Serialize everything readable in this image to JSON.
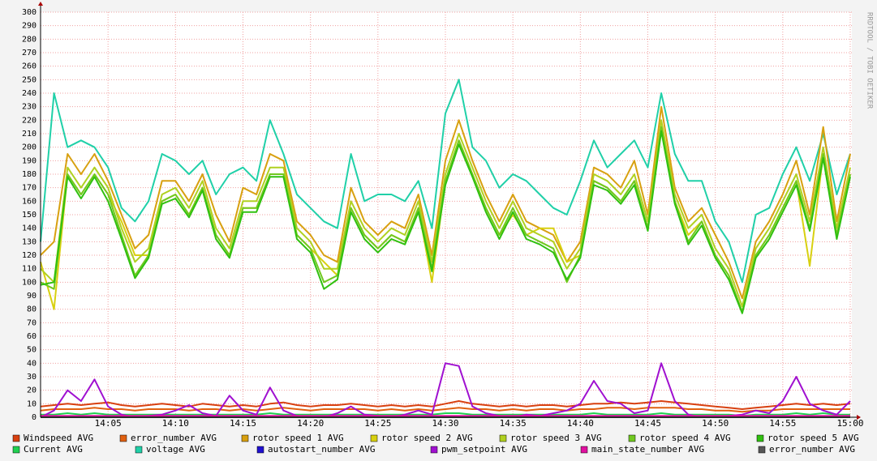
{
  "chart_data": {
    "type": "line",
    "watermark": "RRDTOOL / TOBI OETIKER",
    "x": [
      "14:00",
      "14:01",
      "14:02",
      "14:03",
      "14:04",
      "14:05",
      "14:06",
      "14:07",
      "14:08",
      "14:09",
      "14:10",
      "14:11",
      "14:12",
      "14:13",
      "14:14",
      "14:15",
      "14:16",
      "14:17",
      "14:18",
      "14:19",
      "14:20",
      "14:21",
      "14:22",
      "14:23",
      "14:24",
      "14:25",
      "14:26",
      "14:27",
      "14:28",
      "14:29",
      "14:30",
      "14:31",
      "14:32",
      "14:33",
      "14:34",
      "14:35",
      "14:36",
      "14:37",
      "14:38",
      "14:39",
      "14:40",
      "14:41",
      "14:42",
      "14:43",
      "14:44",
      "14:45",
      "14:46",
      "14:47",
      "14:48",
      "14:49",
      "14:50",
      "14:51",
      "14:52",
      "14:53",
      "14:54",
      "14:55",
      "14:56",
      "14:57",
      "14:58",
      "14:59",
      "15:00"
    ],
    "xlim": [
      "14:00",
      "15:00"
    ],
    "xticks": [
      "14:05",
      "14:10",
      "14:15",
      "14:20",
      "14:25",
      "14:30",
      "14:35",
      "14:40",
      "14:45",
      "14:50",
      "14:55",
      "15:00"
    ],
    "ylim": [
      0,
      300
    ],
    "yticks": [
      0,
      10,
      20,
      30,
      40,
      50,
      60,
      70,
      80,
      90,
      100,
      110,
      120,
      130,
      140,
      150,
      160,
      170,
      180,
      190,
      200,
      210,
      220,
      230,
      240,
      250,
      260,
      270,
      280,
      290,
      300
    ],
    "grid": true,
    "series": [
      {
        "name": "Windspeed AVG",
        "color": "#d84010",
        "values": [
          8,
          9,
          10,
          9,
          10,
          11,
          9,
          8,
          9,
          10,
          9,
          8,
          10,
          9,
          8,
          9,
          8,
          10,
          11,
          9,
          8,
          9,
          9,
          10,
          9,
          8,
          9,
          8,
          9,
          8,
          10,
          12,
          10,
          9,
          8,
          9,
          8,
          9,
          9,
          8,
          9,
          10,
          10,
          11,
          10,
          11,
          12,
          11,
          10,
          9,
          8,
          7,
          6,
          7,
          8,
          9,
          10,
          9,
          10,
          9,
          10
        ]
      },
      {
        "name": "error_number AVG",
        "color": "#e06010",
        "values": [
          5,
          6,
          6,
          6,
          7,
          6,
          6,
          5,
          6,
          6,
          6,
          5,
          6,
          6,
          5,
          6,
          5,
          6,
          7,
          6,
          5,
          6,
          6,
          6,
          6,
          5,
          6,
          5,
          6,
          5,
          6,
          7,
          6,
          6,
          5,
          6,
          5,
          6,
          6,
          5,
          6,
          6,
          7,
          7,
          6,
          7,
          7,
          7,
          6,
          6,
          5,
          5,
          4,
          5,
          5,
          6,
          6,
          6,
          6,
          6,
          6
        ]
      },
      {
        "name": "rotor speed 1 AVG",
        "color": "#d8a010",
        "values": [
          120,
          130,
          195,
          180,
          195,
          175,
          150,
          125,
          135,
          175,
          175,
          160,
          180,
          150,
          130,
          170,
          165,
          195,
          190,
          145,
          135,
          120,
          115,
          170,
          145,
          135,
          145,
          140,
          165,
          120,
          190,
          220,
          190,
          165,
          145,
          165,
          145,
          140,
          135,
          115,
          130,
          185,
          180,
          170,
          190,
          150,
          230,
          170,
          145,
          155,
          135,
          115,
          88,
          130,
          145,
          165,
          190,
          150,
          215,
          145,
          195
        ]
      },
      {
        "name": "rotor speed 2 AVG",
        "color": "#d8d010",
        "values": [
          115,
          80,
          180,
          165,
          180,
          165,
          145,
          120,
          120,
          160,
          165,
          150,
          170,
          135,
          120,
          155,
          155,
          180,
          180,
          135,
          125,
          115,
          105,
          155,
          135,
          125,
          135,
          130,
          155,
          100,
          175,
          205,
          180,
          155,
          135,
          150,
          135,
          140,
          140,
          115,
          120,
          175,
          170,
          160,
          175,
          140,
          215,
          160,
          135,
          145,
          120,
          105,
          78,
          120,
          135,
          155,
          175,
          112,
          195,
          135,
          180
        ]
      },
      {
        "name": "rotor speed 3 AVG",
        "color": "#b0d020",
        "values": [
          110,
          100,
          185,
          170,
          185,
          170,
          140,
          115,
          125,
          165,
          170,
          155,
          175,
          140,
          125,
          160,
          160,
          185,
          185,
          140,
          130,
          110,
          110,
          160,
          140,
          130,
          140,
          135,
          160,
          115,
          180,
          210,
          185,
          160,
          140,
          160,
          140,
          135,
          130,
          110,
          125,
          180,
          175,
          165,
          180,
          145,
          220,
          165,
          140,
          150,
          125,
          110,
          82,
          125,
          140,
          160,
          180,
          145,
          200,
          140,
          185
        ]
      },
      {
        "name": "rotor speed 4 AVG",
        "color": "#70c820",
        "values": [
          100,
          95,
          180,
          165,
          180,
          165,
          135,
          105,
          120,
          160,
          165,
          150,
          170,
          135,
          120,
          155,
          155,
          180,
          180,
          135,
          125,
          100,
          105,
          155,
          135,
          125,
          135,
          130,
          155,
          110,
          175,
          205,
          180,
          155,
          135,
          155,
          135,
          130,
          125,
          100,
          120,
          175,
          170,
          160,
          175,
          140,
          215,
          160,
          130,
          145,
          120,
          105,
          78,
          120,
          135,
          155,
          175,
          140,
          195,
          135,
          180
        ]
      },
      {
        "name": "rotor speed 5 AVG",
        "color": "#30c010",
        "values": [
          98,
          100,
          178,
          162,
          178,
          160,
          132,
          103,
          118,
          158,
          162,
          148,
          168,
          132,
          118,
          152,
          152,
          178,
          178,
          132,
          122,
          95,
          102,
          152,
          132,
          122,
          132,
          128,
          152,
          108,
          172,
          202,
          178,
          152,
          132,
          152,
          132,
          128,
          122,
          102,
          118,
          172,
          168,
          158,
          172,
          138,
          212,
          158,
          128,
          142,
          118,
          102,
          77,
          118,
          132,
          152,
          172,
          138,
          192,
          132,
          178
        ]
      },
      {
        "name": "Current AVG",
        "color": "#20d050",
        "values": [
          2,
          2,
          3,
          2,
          3,
          2,
          2,
          2,
          2,
          2,
          2,
          2,
          2,
          2,
          2,
          2,
          2,
          3,
          2,
          2,
          2,
          2,
          2,
          2,
          2,
          2,
          2,
          2,
          2,
          2,
          3,
          3,
          2,
          2,
          2,
          2,
          2,
          2,
          2,
          2,
          2,
          3,
          2,
          2,
          2,
          2,
          3,
          2,
          2,
          2,
          2,
          2,
          1,
          2,
          2,
          2,
          3,
          2,
          3,
          2,
          2
        ]
      },
      {
        "name": "voltage AVG",
        "color": "#20d0a8",
        "values": [
          130,
          240,
          200,
          205,
          200,
          185,
          155,
          145,
          160,
          195,
          190,
          180,
          190,
          165,
          180,
          185,
          175,
          220,
          195,
          165,
          155,
          145,
          140,
          195,
          160,
          165,
          165,
          160,
          175,
          140,
          225,
          250,
          200,
          190,
          170,
          180,
          175,
          165,
          155,
          150,
          175,
          205,
          185,
          195,
          205,
          185,
          240,
          195,
          175,
          175,
          145,
          130,
          100,
          150,
          155,
          180,
          200,
          175,
          210,
          165,
          195
        ]
      },
      {
        "name": "autostart_number AVG",
        "color": "#2010d0",
        "values": [
          0,
          0,
          0,
          0,
          0,
          0,
          0,
          0,
          0,
          0,
          0,
          0,
          0,
          0,
          0,
          0,
          0,
          0,
          0,
          0,
          0,
          0,
          0,
          0,
          0,
          0,
          0,
          0,
          0,
          0,
          0,
          0,
          0,
          0,
          0,
          0,
          0,
          0,
          0,
          0,
          0,
          0,
          0,
          0,
          0,
          0,
          0,
          0,
          0,
          0,
          0,
          0,
          0,
          0,
          0,
          0,
          0,
          0,
          0,
          0,
          0
        ]
      },
      {
        "name": "pwm_setpoint AVG",
        "color": "#a010d0",
        "values": [
          0,
          5,
          20,
          12,
          28,
          8,
          2,
          0,
          1,
          2,
          5,
          9,
          3,
          1,
          16,
          5,
          2,
          22,
          5,
          1,
          0,
          0,
          3,
          8,
          2,
          1,
          0,
          2,
          5,
          2,
          40,
          38,
          8,
          3,
          1,
          0,
          2,
          1,
          3,
          5,
          10,
          27,
          12,
          10,
          3,
          5,
          40,
          12,
          2,
          0,
          0,
          1,
          2,
          5,
          3,
          12,
          30,
          10,
          5,
          2,
          12
        ]
      },
      {
        "name": "main_state_number AVG",
        "color": "#e010a0",
        "values": [
          1,
          1,
          1,
          1,
          1,
          1,
          1,
          1,
          1,
          1,
          1,
          1,
          1,
          1,
          1,
          1,
          1,
          1,
          1,
          1,
          1,
          1,
          1,
          1,
          1,
          1,
          1,
          1,
          1,
          1,
          1,
          1,
          1,
          1,
          1,
          1,
          1,
          1,
          1,
          1,
          1,
          1,
          1,
          1,
          1,
          1,
          1,
          1,
          1,
          1,
          1,
          1,
          1,
          1,
          1,
          1,
          1,
          1,
          1,
          1,
          1
        ]
      },
      {
        "name": "error_number AVG",
        "color": "#555555",
        "values": [
          0,
          0,
          0,
          0,
          0,
          0,
          0,
          0,
          0,
          0,
          0,
          0,
          0,
          0,
          0,
          0,
          0,
          0,
          0,
          0,
          0,
          0,
          0,
          0,
          0,
          0,
          0,
          0,
          0,
          0,
          0,
          0,
          0,
          0,
          0,
          0,
          0,
          0,
          0,
          0,
          0,
          0,
          0,
          0,
          0,
          0,
          0,
          0,
          0,
          0,
          0,
          0,
          0,
          0,
          0,
          0,
          0,
          0,
          0,
          0,
          0
        ]
      }
    ]
  }
}
